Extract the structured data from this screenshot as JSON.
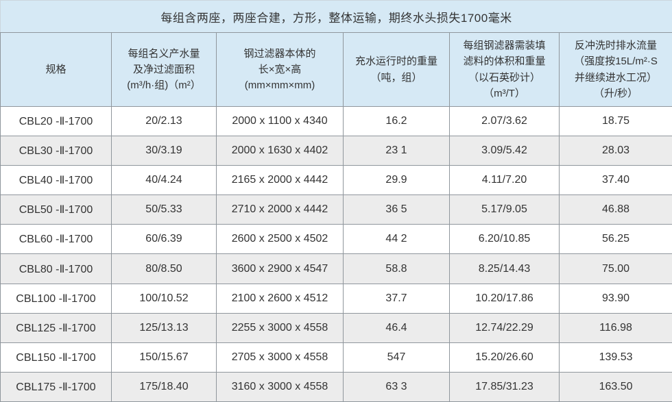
{
  "title": "每组含两座，两座合建，方形，整体运输，期终水头损失1700毫米",
  "colors": {
    "header-bg": "#d6e9f5",
    "row-bg": "#ffffff",
    "stripe-bg": "#ececec",
    "border": "#8f969c",
    "outer-border": "#ccd6dd",
    "text": "#333333"
  },
  "table": {
    "headers": [
      "规格",
      "每组名义产水量\n及净过滤面积\n(m³/h·组)（m²）",
      "钢过滤器本体的\n长×宽×高\n(mm×mm×mm)",
      "充水运行时的重量\n（吨，组）",
      "每组钢滤器需装填\n滤料的体积和重量\n（以石英砂计）\n（m³/T）",
      "反冲洗时排水流量\n（强度按15L/m²·S\n并继续进水工况）\n（升/秒）"
    ],
    "rows": [
      [
        "CBL20 -Ⅱ-1700",
        "20/2.13",
        "2000 x 1100 x 4340",
        "16.2",
        "2.07/3.62",
        "18.75"
      ],
      [
        "CBL30 -Ⅱ-1700",
        "30/3.19",
        "2000 x 1630 x 4402",
        "23 1",
        "3.09/5.42",
        "28.03"
      ],
      [
        "CBL40 -Ⅱ-1700",
        "40/4.24",
        "2165 x 2000 x 4442",
        "29.9",
        "4.11/7.20",
        "37.40"
      ],
      [
        "CBL50 -Ⅱ-1700",
        "50/5.33",
        "2710 x 2000 x 4442",
        "36 5",
        "5.17/9.05",
        "46.88"
      ],
      [
        "CBL60 -Ⅱ-1700",
        "60/6.39",
        "2600 x 2500 x 4502",
        "44 2",
        "6.20/10.85",
        "56.25"
      ],
      [
        "CBL80 -Ⅱ-1700",
        "80/8.50",
        "3600 x 2900 x 4547",
        "58.8",
        "8.25/14.43",
        "75.00"
      ],
      [
        "CBL100 -Ⅱ-1700",
        "100/10.52",
        "2100 x 2600 x 4512",
        "37.7",
        "10.20/17.86",
        "93.90"
      ],
      [
        "CBL125 -Ⅱ-1700",
        "125/13.13",
        "2255 x 3000 x 4558",
        "46.4",
        "12.74/22.29",
        "116.98"
      ],
      [
        "CBL150 -Ⅱ-1700",
        "150/15.67",
        "2705 x 3000 x 4558",
        "547",
        "15.20/26.60",
        "139.53"
      ],
      [
        "CBL175 -Ⅱ-1700",
        "175/18.40",
        "3160 x 3000 x 4558",
        "63 3",
        "17.85/31.23",
        "163.50"
      ]
    ]
  }
}
